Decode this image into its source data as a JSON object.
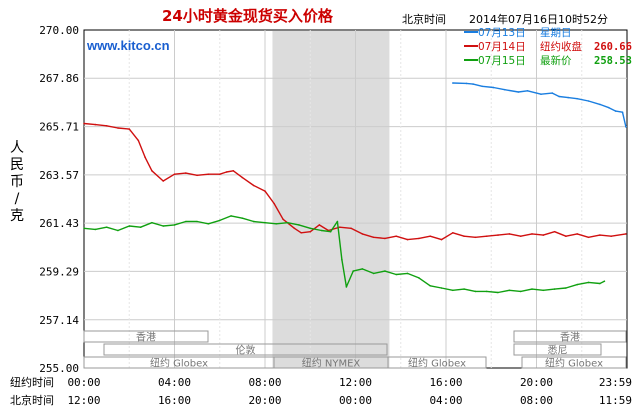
{
  "header": {
    "title": "24小时黄金现货买入价格",
    "location": "北京时间",
    "datetime": "2014年07月16日10时52分",
    "site": "www.kitco.cn"
  },
  "legend": [
    {
      "date": "07月13日",
      "label": "星期日",
      "value": "",
      "color": "#1a7ee0"
    },
    {
      "date": "07月14日",
      "label": "纽约收盘",
      "value": "260.66",
      "color": "#d01010"
    },
    {
      "date": "07月15日",
      "label": "最新价",
      "value": "258.53",
      "color": "#10a010"
    }
  ],
  "axis": {
    "ylabel": "人民币/克",
    "ny_time_label": "纽约时间",
    "bj_time_label": "北京时间",
    "y_ticks": [
      "270.00",
      "267.86",
      "265.71",
      "263.57",
      "261.43",
      "259.29",
      "257.14",
      "255.00"
    ],
    "ny_ticks": [
      "00:00",
      "04:00",
      "08:00",
      "12:00",
      "16:00",
      "20:00",
      "23:59"
    ],
    "bj_ticks": [
      "12:00",
      "16:00",
      "20:00",
      "00:00",
      "04:00",
      "08:00",
      "11:59"
    ]
  },
  "sessions": [
    {
      "label": "香港",
      "row": 0
    },
    {
      "label": "香港",
      "row": 0
    },
    {
      "label": "伦敦",
      "row": 1
    },
    {
      "label": "悉尼",
      "row": 1
    },
    {
      "label": "纽约 Globex",
      "row": 2
    },
    {
      "label": "纽约 NYMEX",
      "row": 2
    },
    {
      "label": "纽约 Globex",
      "row": 2
    },
    {
      "label": "纽约 Globex",
      "row": 2
    }
  ],
  "chart_data": {
    "type": "line",
    "title": "24小时黄金现货买入价格",
    "ylabel": "人民币/克",
    "ylim": [
      255.0,
      270.0
    ],
    "xlim": [
      0,
      24
    ],
    "x_unit": "纽约时间 (hours)",
    "grid": true,
    "legend_position": "top-right",
    "shaded_session": {
      "label": "纽约 NYMEX",
      "x_start": 8.33,
      "x_end": 13.5
    },
    "series": [
      {
        "name": "07月13日",
        "color": "#1a7ee0",
        "x": [
          16.3,
          16.9,
          17.2,
          17.6,
          18.1,
          18.6,
          19.2,
          19.6,
          20.2,
          20.7,
          21.0,
          21.4,
          21.8,
          22.3,
          22.8,
          23.2,
          23.5,
          23.8,
          23.95
        ],
        "y": [
          267.65,
          267.63,
          267.6,
          267.5,
          267.45,
          267.35,
          267.25,
          267.3,
          267.15,
          267.2,
          267.05,
          267.0,
          266.95,
          266.85,
          266.7,
          266.55,
          266.4,
          266.35,
          265.7
        ]
      },
      {
        "name": "07月14日",
        "color": "#d01010",
        "x": [
          0,
          0.5,
          1.0,
          1.5,
          2.0,
          2.4,
          2.7,
          3.0,
          3.5,
          4.0,
          4.5,
          5.0,
          5.5,
          6.0,
          6.3,
          6.6,
          7.0,
          7.5,
          8.0,
          8.4,
          8.8,
          9.3,
          9.6,
          10.0,
          10.4,
          10.8,
          11.3,
          11.8,
          12.3,
          12.8,
          13.3,
          13.8,
          14.3,
          14.8,
          15.3,
          15.8,
          16.3,
          16.8,
          17.3,
          17.8,
          18.3,
          18.8,
          19.3,
          19.8,
          20.3,
          20.8,
          21.3,
          21.8,
          22.3,
          22.8,
          23.3,
          23.95
        ],
        "y": [
          265.85,
          265.8,
          265.75,
          265.65,
          265.6,
          265.1,
          264.35,
          263.75,
          263.3,
          263.6,
          263.65,
          263.55,
          263.6,
          263.6,
          263.7,
          263.75,
          263.45,
          263.1,
          262.85,
          262.3,
          261.6,
          261.2,
          261.0,
          261.05,
          261.35,
          261.1,
          261.25,
          261.2,
          260.95,
          260.8,
          260.75,
          260.85,
          260.7,
          260.75,
          260.85,
          260.7,
          261.0,
          260.85,
          260.8,
          260.85,
          260.9,
          260.95,
          260.85,
          260.95,
          260.9,
          261.05,
          260.85,
          260.95,
          260.8,
          260.9,
          260.85,
          260.95
        ]
      },
      {
        "name": "07月15日",
        "color": "#10a010",
        "x": [
          0,
          0.5,
          1.0,
          1.5,
          2.0,
          2.5,
          3.0,
          3.5,
          4.0,
          4.5,
          5.0,
          5.5,
          6.0,
          6.5,
          7.0,
          7.5,
          8.0,
          8.5,
          9.0,
          9.5,
          10.0,
          10.5,
          10.9,
          11.2,
          11.4,
          11.6,
          11.9,
          12.3,
          12.8,
          13.3,
          13.8,
          14.3,
          14.8,
          15.3,
          15.8,
          16.3,
          16.8,
          17.3,
          17.8,
          18.3,
          18.8,
          19.3,
          19.8,
          20.3,
          20.8,
          21.3,
          21.8,
          22.3,
          22.8,
          23.0
        ],
        "y": [
          261.2,
          261.15,
          261.25,
          261.1,
          261.3,
          261.25,
          261.45,
          261.3,
          261.35,
          261.5,
          261.5,
          261.4,
          261.55,
          261.75,
          261.65,
          261.5,
          261.45,
          261.4,
          261.45,
          261.35,
          261.2,
          261.1,
          261.05,
          261.5,
          259.8,
          258.6,
          259.3,
          259.4,
          259.2,
          259.3,
          259.15,
          259.2,
          259.0,
          258.65,
          258.55,
          258.45,
          258.5,
          258.4,
          258.4,
          258.35,
          258.45,
          258.4,
          258.5,
          258.45,
          258.5,
          258.55,
          258.7,
          258.8,
          258.75,
          258.85
        ]
      }
    ]
  }
}
